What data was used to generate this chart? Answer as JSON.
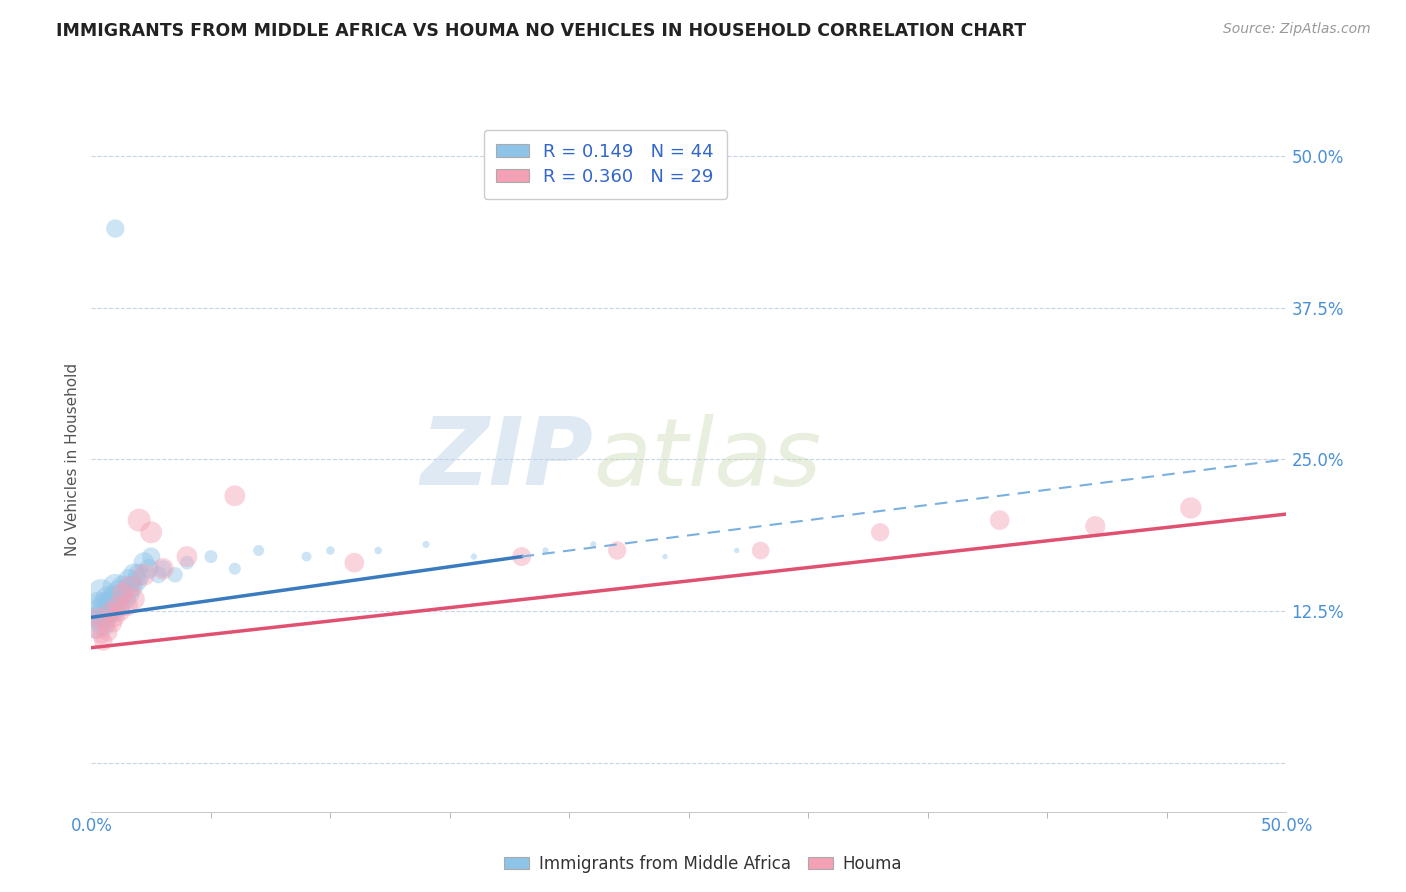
{
  "title": "IMMIGRANTS FROM MIDDLE AFRICA VS HOUMA NO VEHICLES IN HOUSEHOLD CORRELATION CHART",
  "source": "Source: ZipAtlas.com",
  "ylabel": "No Vehicles in Household",
  "watermark_zip": "ZIP",
  "watermark_atlas": "atlas",
  "xlim": [
    0.0,
    0.5
  ],
  "ylim": [
    -0.04,
    0.54
  ],
  "ytick_vals": [
    0.0,
    0.125,
    0.25,
    0.375,
    0.5
  ],
  "ytick_labels": [
    "",
    "12.5%",
    "25.0%",
    "37.5%",
    "50.0%"
  ],
  "xtick_vals": [
    0.0,
    0.5
  ],
  "xtick_labels": [
    "0.0%",
    "50.0%"
  ],
  "legend_r1": "R = 0.149",
  "legend_n1": "N = 44",
  "legend_r2": "R = 0.360",
  "legend_n2": "N = 29",
  "blue_color": "#8ec4e8",
  "pink_color": "#f4a0b5",
  "trend_blue_solid_color": "#3a7bbf",
  "trend_blue_dash_color": "#7ab0e0",
  "trend_pink_color": "#e05070",
  "background_color": "#ffffff",
  "grid_color": "#c8d4e8",
  "blue_scatter_x": [
    0.002,
    0.003,
    0.003,
    0.004,
    0.005,
    0.005,
    0.006,
    0.006,
    0.007,
    0.007,
    0.008,
    0.009,
    0.01,
    0.01,
    0.011,
    0.012,
    0.013,
    0.014,
    0.015,
    0.016,
    0.017,
    0.018,
    0.019,
    0.02,
    0.022,
    0.024,
    0.025,
    0.028,
    0.03,
    0.035,
    0.04,
    0.05,
    0.06,
    0.07,
    0.09,
    0.1,
    0.12,
    0.14,
    0.16,
    0.19,
    0.21,
    0.24,
    0.27,
    0.01
  ],
  "blue_scatter_y": [
    0.115,
    0.13,
    0.12,
    0.14,
    0.115,
    0.125,
    0.13,
    0.12,
    0.125,
    0.135,
    0.13,
    0.125,
    0.135,
    0.145,
    0.13,
    0.14,
    0.145,
    0.135,
    0.14,
    0.15,
    0.145,
    0.155,
    0.15,
    0.155,
    0.165,
    0.16,
    0.17,
    0.155,
    0.16,
    0.155,
    0.165,
    0.17,
    0.16,
    0.175,
    0.17,
    0.175,
    0.175,
    0.18,
    0.17,
    0.175,
    0.18,
    0.17,
    0.175,
    0.44
  ],
  "blue_scatter_s": [
    200,
    150,
    120,
    160,
    130,
    180,
    150,
    100,
    120,
    140,
    130,
    110,
    160,
    140,
    120,
    150,
    110,
    100,
    130,
    120,
    100,
    110,
    90,
    100,
    90,
    80,
    70,
    60,
    60,
    50,
    40,
    35,
    30,
    25,
    20,
    15,
    12,
    10,
    8,
    8,
    8,
    6,
    6,
    70
  ],
  "pink_scatter_x": [
    0.002,
    0.003,
    0.004,
    0.005,
    0.006,
    0.007,
    0.008,
    0.009,
    0.01,
    0.011,
    0.012,
    0.013,
    0.015,
    0.016,
    0.018,
    0.02,
    0.022,
    0.025,
    0.03,
    0.04,
    0.06,
    0.11,
    0.18,
    0.22,
    0.28,
    0.33,
    0.38,
    0.42,
    0.46
  ],
  "pink_scatter_y": [
    0.11,
    0.12,
    0.105,
    0.1,
    0.115,
    0.108,
    0.125,
    0.115,
    0.12,
    0.13,
    0.125,
    0.14,
    0.13,
    0.145,
    0.135,
    0.2,
    0.155,
    0.19,
    0.16,
    0.17,
    0.22,
    0.165,
    0.17,
    0.175,
    0.175,
    0.19,
    0.2,
    0.195,
    0.21
  ],
  "pink_scatter_s": [
    70,
    80,
    60,
    70,
    65,
    75,
    80,
    70,
    75,
    80,
    85,
    90,
    95,
    100,
    90,
    110,
    100,
    100,
    95,
    90,
    90,
    80,
    75,
    70,
    65,
    70,
    80,
    85,
    95
  ],
  "blue_trend_x0": 0.0,
  "blue_trend_x_solid_end": 0.18,
  "blue_trend_x_dash_end": 0.5,
  "blue_trend_y_start": 0.12,
  "blue_trend_y_solid_end": 0.17,
  "blue_trend_y_dash_end": 0.25,
  "pink_trend_x0": 0.0,
  "pink_trend_x_end": 0.5,
  "pink_trend_y_start": 0.095,
  "pink_trend_y_end": 0.205
}
